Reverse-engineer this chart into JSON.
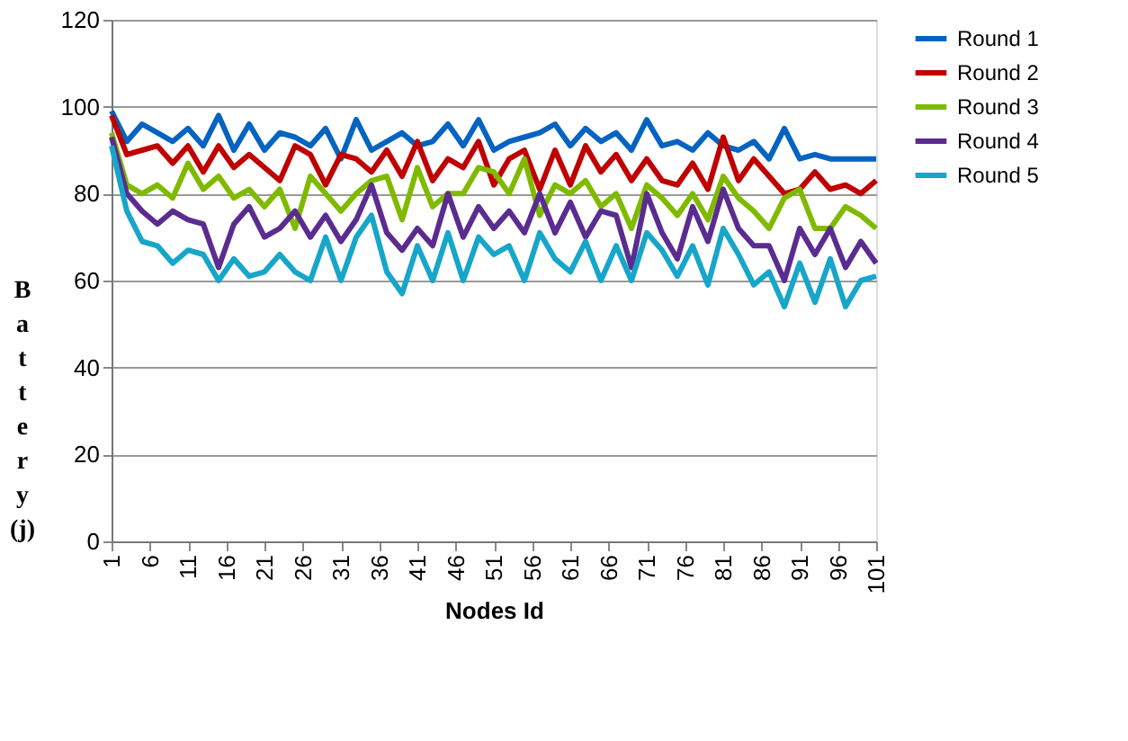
{
  "chart_data": {
    "type": "line",
    "xlabel": "Nodes Id",
    "ylabel": "Battery (j)",
    "x": [
      1,
      3,
      5,
      7,
      9,
      11,
      13,
      15,
      17,
      19,
      21,
      23,
      25,
      27,
      29,
      31,
      33,
      35,
      37,
      39,
      41,
      43,
      45,
      47,
      49,
      51,
      53,
      55,
      57,
      59,
      61,
      63,
      65,
      67,
      69,
      71,
      73,
      75,
      77,
      79,
      81,
      83,
      85,
      87,
      89,
      91,
      93,
      95,
      97,
      99,
      101
    ],
    "xlim": [
      1,
      101
    ],
    "xticks": [
      1,
      6,
      11,
      16,
      21,
      26,
      31,
      36,
      41,
      46,
      51,
      56,
      61,
      66,
      71,
      76,
      81,
      86,
      91,
      96,
      101
    ],
    "ylim": [
      0,
      120
    ],
    "yticks": [
      0,
      20,
      40,
      60,
      80,
      100,
      120
    ],
    "grid": "y",
    "legend": "right",
    "marker": "none",
    "line_style": "solid",
    "series": [
      {
        "name": "Round 1",
        "color": "#0563c1",
        "values": [
          99,
          92,
          96,
          94,
          92,
          95,
          91,
          98,
          90,
          96,
          90,
          94,
          93,
          91,
          95,
          88,
          97,
          90,
          92,
          94,
          91,
          92,
          96,
          91,
          97,
          90,
          92,
          93,
          94,
          96,
          91,
          95,
          92,
          94,
          90,
          97,
          91,
          92,
          90,
          94,
          91,
          90,
          92,
          88,
          95,
          88,
          89,
          88,
          88,
          88,
          88
        ]
      },
      {
        "name": "Round 2",
        "color": "#c00000",
        "values": [
          98,
          89,
          90,
          91,
          87,
          91,
          85,
          91,
          86,
          89,
          86,
          83,
          91,
          89,
          82,
          89,
          88,
          85,
          90,
          84,
          92,
          83,
          88,
          86,
          92,
          82,
          88,
          90,
          81,
          90,
          82,
          91,
          85,
          89,
          83,
          88,
          83,
          82,
          87,
          81,
          93,
          83,
          88,
          84,
          80,
          81,
          85,
          81,
          82,
          80,
          83
        ]
      },
      {
        "name": "Round 3",
        "color": "#7fba00",
        "values": [
          94,
          82,
          80,
          82,
          79,
          87,
          81,
          84,
          79,
          81,
          77,
          81,
          72,
          84,
          80,
          76,
          80,
          83,
          84,
          74,
          86,
          77,
          80,
          80,
          86,
          85,
          80,
          88,
          75,
          82,
          80,
          83,
          77,
          80,
          72,
          82,
          79,
          75,
          80,
          74,
          84,
          79,
          76,
          72,
          79,
          81,
          72,
          72,
          77,
          75,
          72
        ]
      },
      {
        "name": "Round 4",
        "color": "#5b2c90",
        "values": [
          93,
          80,
          76,
          73,
          76,
          74,
          73,
          63,
          73,
          77,
          70,
          72,
          76,
          70,
          75,
          69,
          74,
          82,
          71,
          67,
          72,
          68,
          80,
          70,
          77,
          72,
          76,
          71,
          80,
          71,
          78,
          70,
          76,
          75,
          63,
          80,
          71,
          65,
          77,
          69,
          81,
          72,
          68,
          68,
          60,
          72,
          66,
          72,
          63,
          69,
          64
        ]
      },
      {
        "name": "Round 5",
        "color": "#17a6c9",
        "values": [
          91,
          76,
          69,
          68,
          64,
          67,
          66,
          60,
          65,
          61,
          62,
          66,
          62,
          60,
          70,
          60,
          70,
          75,
          62,
          57,
          68,
          60,
          71,
          60,
          70,
          66,
          68,
          60,
          71,
          65,
          62,
          69,
          60,
          68,
          60,
          71,
          67,
          61,
          68,
          59,
          72,
          66,
          59,
          62,
          54,
          64,
          55,
          65,
          54,
          60,
          61
        ]
      }
    ]
  }
}
